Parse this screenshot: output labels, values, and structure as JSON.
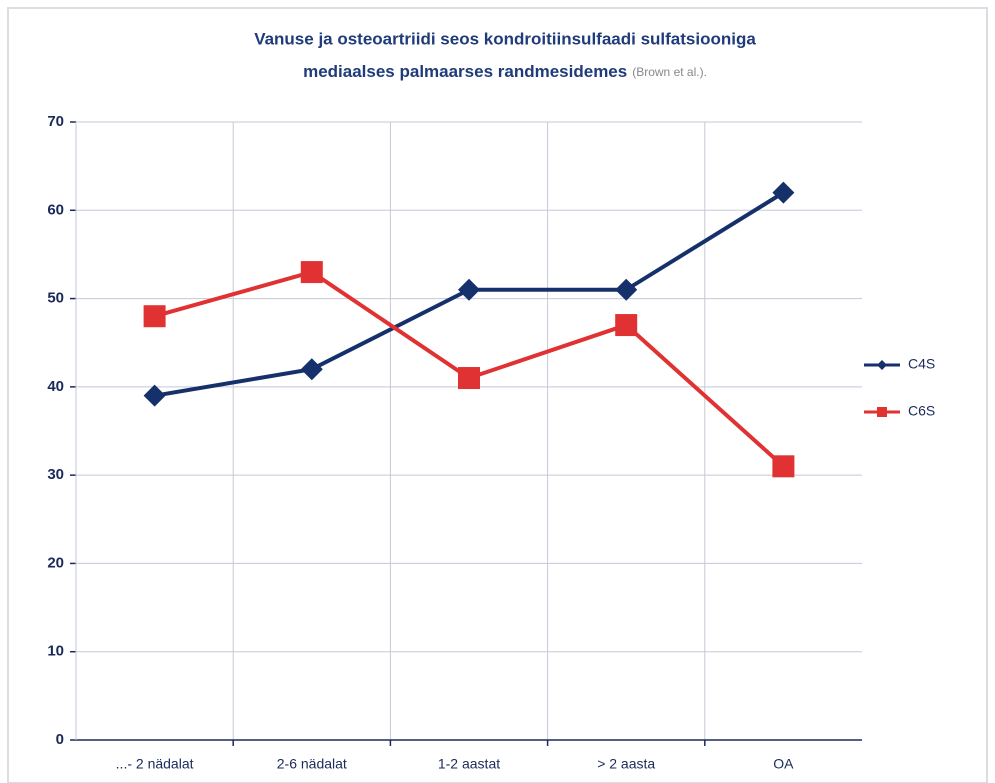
{
  "chart_data": {
    "type": "line",
    "title": [
      "Vanuse ja osteoartriidi seos kondroitiinsulfaadi sulfatsiooniga",
      "mediaalses palmaarses randmesidemes"
    ],
    "source": "(Brown et al.).",
    "categories": [
      "...- 2 nädalat",
      "2-6 nädalat",
      "1-2 aastat",
      ">  2 aasta",
      "OA"
    ],
    "series": [
      {
        "name": "C4S",
        "color": "#16306b",
        "marker": "diamond",
        "values": [
          39,
          42,
          51,
          51,
          62
        ]
      },
      {
        "name": "C6S",
        "color": "#e03232",
        "marker": "square",
        "values": [
          48,
          53,
          41,
          47,
          31
        ]
      }
    ],
    "ylim": [
      0,
      70
    ],
    "yticks": [
      0,
      10,
      20,
      30,
      40,
      50,
      60,
      70
    ],
    "grid": true,
    "legend": "right"
  }
}
